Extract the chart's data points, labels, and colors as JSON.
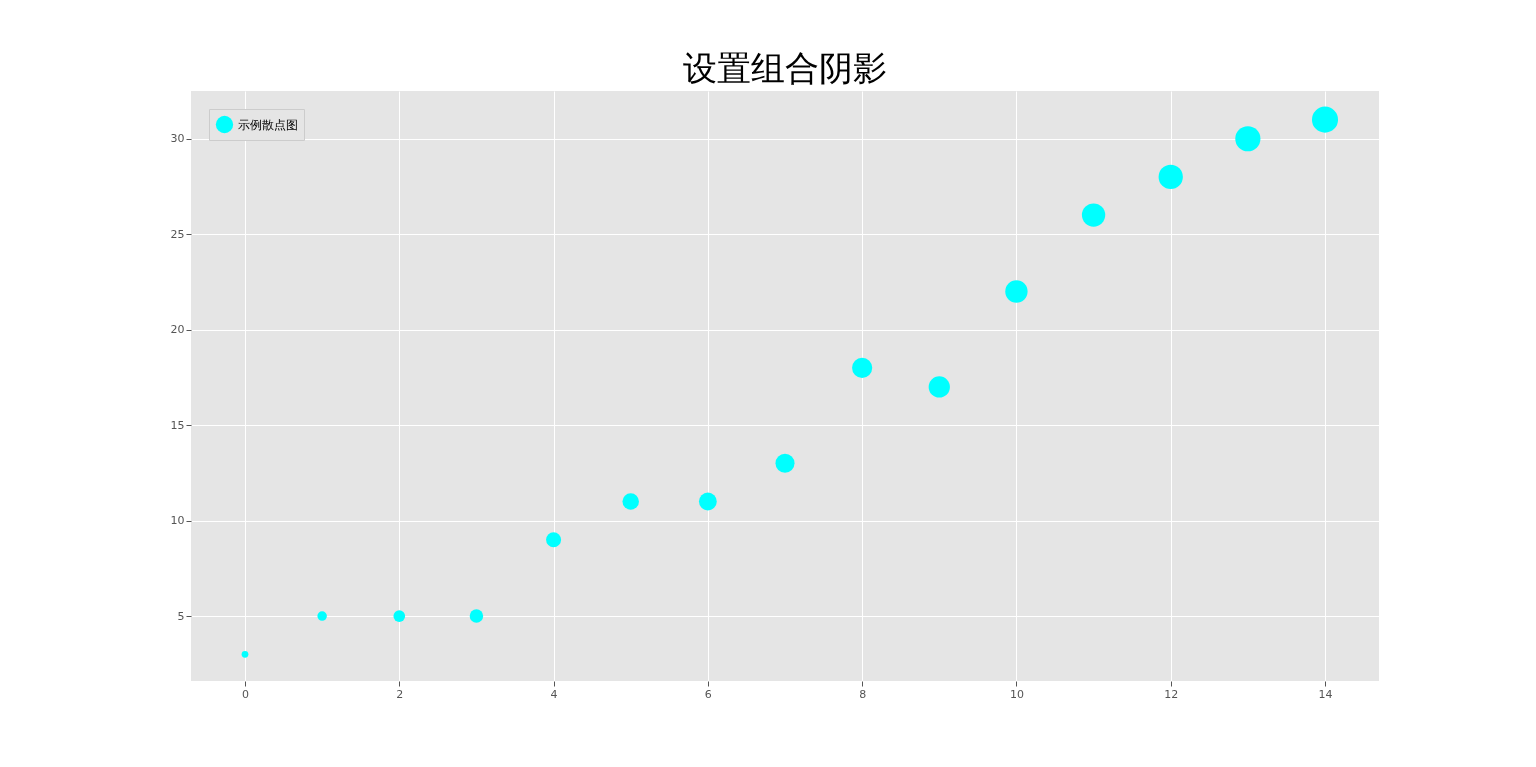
{
  "chart_data": {
    "type": "bubble",
    "title": "设置组合阴影",
    "x": [
      0,
      1,
      2,
      3,
      4,
      5,
      6,
      7,
      8,
      9,
      10,
      11,
      12,
      13,
      14
    ],
    "series": [
      {
        "name": "示例散点图",
        "color": "#00ffff",
        "values": [
          3,
          5,
          5,
          5,
          9,
          11,
          11,
          13,
          18,
          17,
          22,
          26,
          28,
          30,
          31
        ],
        "sizes": [
          0.067,
          0.133,
          0.2,
          0.267,
          0.333,
          0.4,
          0.467,
          0.533,
          0.6,
          0.667,
          0.733,
          0.8,
          0.867,
          0.933,
          1
        ]
      }
    ],
    "xlim": [
      -0.7,
      14.7
    ],
    "ylim": [
      1.6,
      32.5
    ],
    "xticks": [
      0,
      2,
      4,
      6,
      8,
      10,
      12,
      14
    ],
    "yticks": [
      5,
      10,
      15,
      20,
      25,
      30
    ],
    "grid": true,
    "legend": "top left",
    "marker": "circle"
  }
}
